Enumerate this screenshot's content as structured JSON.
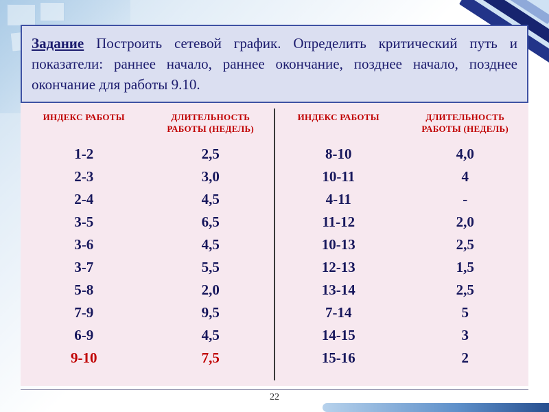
{
  "task": {
    "label": "Задание",
    "text": " Построить сетевой график. Определить критический путь и показатели: раннее начало, раннее окончание, позднее начало, позднее окончание для работы 9.10."
  },
  "tables": {
    "left": {
      "headers": [
        "ИНДЕКС РАБОТЫ",
        "ДЛИТЕЛЬНОСТЬ РАБОТЫ (НЕДЕЛЬ)"
      ],
      "rows": [
        [
          "1-2",
          "2,5"
        ],
        [
          "2-3",
          "3,0"
        ],
        [
          "2-4",
          "4,5"
        ],
        [
          "3-5",
          "6,5"
        ],
        [
          "3-6",
          "4,5"
        ],
        [
          "3-7",
          "5,5"
        ],
        [
          "5-8",
          "2,0"
        ],
        [
          "7-9",
          "9,5"
        ],
        [
          "6-9",
          "4,5"
        ],
        [
          "9-10",
          "7,5"
        ]
      ],
      "highlight_rows": [
        9
      ]
    },
    "right": {
      "headers": [
        "ИНДЕКС РАБОТЫ",
        "ДЛИТЕЛЬНОСТЬ РАБОТЫ (НЕДЕЛЬ)"
      ],
      "rows": [
        [
          "8-10",
          "4,0"
        ],
        [
          "10-11",
          "4"
        ],
        [
          "4-11",
          "-"
        ],
        [
          "11-12",
          "2,0"
        ],
        [
          "10-13",
          "2,5"
        ],
        [
          "12-13",
          "1,5"
        ],
        [
          "13-14",
          "2,5"
        ],
        [
          "7-14",
          "5"
        ],
        [
          "14-15",
          "3"
        ],
        [
          "15-16",
          "2"
        ]
      ],
      "highlight_rows": []
    }
  },
  "footer": {
    "page_number": "22"
  },
  "colors": {
    "header_red": "#c00000",
    "body_navy": "#17175c",
    "task_navy": "#1c1c6e",
    "highlight_red": "#c00000",
    "task_box_bg": "#dbdff1",
    "task_box_border": "#3f51a3",
    "table_bg": "#f7e8ef"
  }
}
